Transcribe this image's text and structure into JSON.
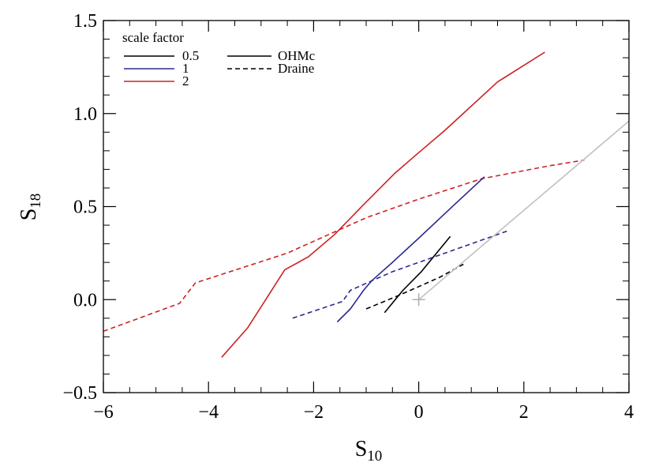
{
  "chart_data": {
    "type": "line",
    "title": "",
    "xlabel": {
      "main": "S",
      "sub": "10"
    },
    "ylabel": {
      "main": "S",
      "sub": "18"
    },
    "xlim": [
      -6,
      4
    ],
    "ylim": [
      -0.5,
      1.5
    ],
    "xticks": [
      -6,
      -4,
      -2,
      0,
      2,
      4
    ],
    "xtick_labels": [
      "−6",
      "−4",
      "−2",
      "0",
      "2",
      "4"
    ],
    "yticks": [
      -0.5,
      0.0,
      0.5,
      1.0,
      1.5
    ],
    "ytick_labels": [
      "−0.5",
      "0.0",
      "0.5",
      "1.0",
      "1.5"
    ],
    "legend": {
      "placement": "top-left",
      "scale_title": "scale factor",
      "scale_entries": [
        {
          "label": "0.5",
          "color": "#000000"
        },
        {
          "label": "1",
          "color": "#2b2b8c"
        },
        {
          "label": "2",
          "color": "#cc2222"
        }
      ],
      "model_entries": [
        {
          "label": "OHMc",
          "style": "solid"
        },
        {
          "label": "Draine",
          "style": "dashed"
        }
      ]
    },
    "series": [
      {
        "color": "#cc2222",
        "style": "solid",
        "x": [
          -3.75,
          -3.25,
          -2.55,
          -2.1,
          -1.6,
          -1.05,
          -0.45,
          0.0,
          0.5,
          1.5,
          2.4
        ],
        "y": [
          -0.31,
          -0.15,
          0.16,
          0.23,
          0.35,
          0.51,
          0.68,
          0.79,
          0.91,
          1.17,
          1.33
        ]
      },
      {
        "color": "#cc2222",
        "style": "dashed",
        "x": [
          -6.0,
          -4.55,
          -4.25,
          -2.5,
          -1.0,
          0.0,
          1.2,
          2.5,
          3.15
        ],
        "y": [
          -0.17,
          -0.02,
          0.09,
          0.25,
          0.44,
          0.54,
          0.65,
          0.72,
          0.75
        ]
      },
      {
        "color": "#2b2b8c",
        "style": "solid",
        "x": [
          -1.55,
          -1.3,
          -1.05,
          -0.9,
          -0.5,
          0.0,
          0.6,
          1.25
        ],
        "y": [
          -0.12,
          -0.05,
          0.05,
          0.1,
          0.2,
          0.33,
          0.49,
          0.66
        ]
      },
      {
        "color": "#2b2b8c",
        "style": "dashed",
        "x": [
          -2.4,
          -1.45,
          -1.4,
          -1.3,
          -0.5,
          0.5,
          1.7
        ],
        "y": [
          -0.1,
          -0.01,
          0.01,
          0.05,
          0.15,
          0.25,
          0.37
        ]
      },
      {
        "color": "#000000",
        "style": "solid",
        "x": [
          -0.65,
          -0.3,
          0.05,
          0.6
        ],
        "y": [
          -0.07,
          0.05,
          0.15,
          0.34
        ]
      },
      {
        "color": "#000000",
        "style": "dashed",
        "x": [
          -1.0,
          -0.4,
          0.0,
          0.4,
          0.85
        ],
        "y": [
          -0.05,
          0.02,
          0.07,
          0.12,
          0.19
        ]
      },
      {
        "color": "#c0c0c0",
        "style": "solid",
        "x": [
          0.0,
          4.0
        ],
        "y": [
          0.0,
          0.96
        ]
      }
    ],
    "markers": [
      {
        "x": 0.0,
        "y": 0.0,
        "symbol": "plus",
        "color": "#b0b0b0"
      }
    ]
  }
}
